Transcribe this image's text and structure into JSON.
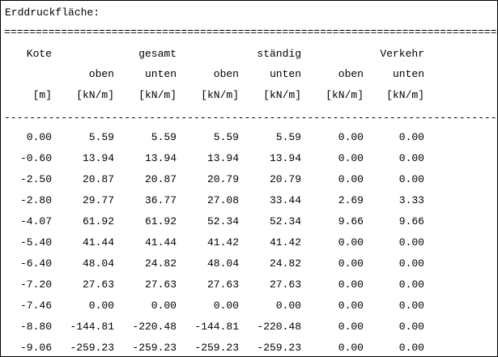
{
  "title": "Erddruckfläche:",
  "rules": {
    "double": "==============================================================================",
    "single": "------------------------------------------------------------------------------"
  },
  "header": {
    "row1": [
      "Kote",
      "",
      "gesamt",
      "",
      "ständig",
      "",
      "Verkehr"
    ],
    "row2": [
      "",
      "oben",
      "unten",
      "oben",
      "unten",
      "oben",
      "unten"
    ],
    "row3": [
      "[m]",
      "[kN/m]",
      "[kN/m]",
      "[kN/m]",
      "[kN/m]",
      "[kN/m]",
      "[kN/m]"
    ]
  },
  "rows": [
    [
      "0.00",
      "5.59",
      "5.59",
      "5.59",
      "5.59",
      "0.00",
      "0.00"
    ],
    [
      "-0.60",
      "13.94",
      "13.94",
      "13.94",
      "13.94",
      "0.00",
      "0.00"
    ],
    [
      "-2.50",
      "20.87",
      "20.87",
      "20.79",
      "20.79",
      "0.00",
      "0.00"
    ],
    [
      "-2.80",
      "29.77",
      "36.77",
      "27.08",
      "33.44",
      "2.69",
      "3.33"
    ],
    [
      "-4.07",
      "61.92",
      "61.92",
      "52.34",
      "52.34",
      "9.66",
      "9.66"
    ],
    [
      "-5.40",
      "41.44",
      "41.44",
      "41.42",
      "41.42",
      "0.00",
      "0.00"
    ],
    [
      "-6.40",
      "48.04",
      "24.82",
      "48.04",
      "24.82",
      "0.00",
      "0.00"
    ],
    [
      "-7.20",
      "27.63",
      "27.63",
      "27.63",
      "27.63",
      "0.00",
      "0.00"
    ],
    [
      "-7.46",
      "0.00",
      "0.00",
      "0.00",
      "0.00",
      "0.00",
      "0.00"
    ],
    [
      "-8.80",
      "-144.81",
      "-220.48",
      "-144.81",
      "-220.48",
      "0.00",
      "0.00"
    ],
    [
      "-9.06",
      "-259.23",
      "-259.23",
      "-259.23",
      "-259.23",
      "0.00",
      "0.00"
    ]
  ]
}
